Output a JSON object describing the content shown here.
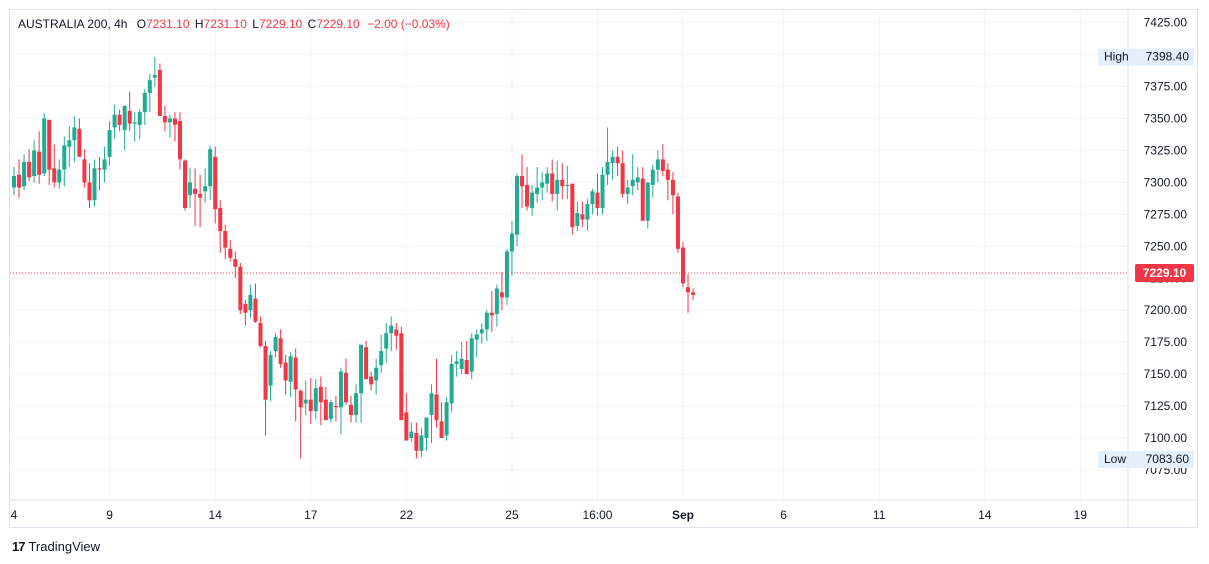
{
  "legend": {
    "symbol": "AUSTRALIA 200",
    "interval": "4h",
    "open_key": "O",
    "open": "7231.10",
    "high_key": "H",
    "high": "7231.10",
    "low_key": "L",
    "low": "7229.10",
    "close_key": "C",
    "close": "7229.10",
    "change": "−2.00 (−0.03%)"
  },
  "colors": {
    "up": "#22ab94",
    "down": "#f23645",
    "grid": "#f0f3fa",
    "badge": "#e3effd"
  },
  "brand": {
    "name": "TradingView"
  },
  "chart_data": {
    "type": "candlestick",
    "title": "AUSTRALIA 200, 4h",
    "y_ticks": [
      7075,
      7100,
      7125,
      7150,
      7175,
      7200,
      7225,
      7250,
      7275,
      7300,
      7325,
      7350,
      7375,
      7400,
      7425
    ],
    "y_tick_labels": [
      "7075.00",
      "7100.00",
      "7125.00",
      "7150.00",
      "7175.00",
      "7200.00",
      "7225.00",
      "7250.00",
      "7275.00",
      "7300.00",
      "7325.00",
      "7350.00",
      "7375.00",
      "7400.00",
      "7425.00"
    ],
    "x_ticks": [
      {
        "label": "4",
        "bar": 0,
        "bold": false
      },
      {
        "label": "9",
        "bar": 19,
        "bold": false
      },
      {
        "label": "14",
        "bar": 40,
        "bold": false
      },
      {
        "label": "17",
        "bar": 59,
        "bold": false
      },
      {
        "label": "22",
        "bar": 78,
        "bold": false
      },
      {
        "label": "25",
        "bar": 99,
        "bold": false
      },
      {
        "label": "16:00",
        "bar": 116,
        "bold": false
      },
      {
        "label": "Sep",
        "bar": 133,
        "bold": true
      },
      {
        "label": "6",
        "bar": 153,
        "bold": false
      },
      {
        "label": "11",
        "bar": 172,
        "bold": false
      },
      {
        "label": "14",
        "bar": 193,
        "bold": false
      },
      {
        "label": "19",
        "bar": 212,
        "bold": false
      }
    ],
    "markers": {
      "high_label": "High",
      "high": "7398.40",
      "low_label": "Low",
      "low": "7083.60",
      "last": "7229.10",
      "last_value": 7229.1
    },
    "ylim": [
      7070,
      7428
    ],
    "series": [
      {
        "name": "AUSTRALIA 200",
        "dir_hint": "ohlc",
        "points": [
          [
            7296,
            7312,
            7290,
            7305
          ],
          [
            7306,
            7318,
            7288,
            7296
          ],
          [
            7297,
            7322,
            7294,
            7316
          ],
          [
            7316,
            7326,
            7301,
            7304
          ],
          [
            7305,
            7333,
            7300,
            7325
          ],
          [
            7324,
            7340,
            7299,
            7306
          ],
          [
            7307,
            7354,
            7305,
            7350
          ],
          [
            7349,
            7346,
            7298,
            7310
          ],
          [
            7311,
            7330,
            7296,
            7300
          ],
          [
            7300,
            7318,
            7295,
            7310
          ],
          [
            7310,
            7336,
            7297,
            7329
          ],
          [
            7328,
            7344,
            7312,
            7333
          ],
          [
            7333,
            7352,
            7316,
            7343
          ],
          [
            7342,
            7350,
            7320,
            7320
          ],
          [
            7318,
            7326,
            7296,
            7300
          ],
          [
            7300,
            7315,
            7280,
            7286
          ],
          [
            7286,
            7318,
            7281,
            7311
          ],
          [
            7311,
            7320,
            7294,
            7310
          ],
          [
            7310,
            7328,
            7300,
            7318
          ],
          [
            7320,
            7348,
            7313,
            7341
          ],
          [
            7343,
            7361,
            7334,
            7353
          ],
          [
            7353,
            7357,
            7340,
            7345
          ],
          [
            7341,
            7360,
            7325,
            7360
          ],
          [
            7356,
            7371,
            7340,
            7346
          ],
          [
            7346,
            7355,
            7332,
            7347
          ],
          [
            7345,
            7357,
            7334,
            7355
          ],
          [
            7355,
            7373,
            7345,
            7370
          ],
          [
            7370,
            7385,
            7355,
            7380
          ],
          [
            7382,
            7398,
            7375,
            7384
          ],
          [
            7388,
            7393,
            7352,
            7352
          ],
          [
            7352,
            7360,
            7340,
            7347
          ],
          [
            7347,
            7353,
            7335,
            7350
          ],
          [
            7350,
            7355,
            7332,
            7345
          ],
          [
            7348,
            7355,
            7310,
            7318
          ],
          [
            7317,
            7318,
            7278,
            7280
          ],
          [
            7290,
            7311,
            7280,
            7300
          ],
          [
            7295,
            7311,
            7266,
            7291
          ],
          [
            7291,
            7306,
            7265,
            7288
          ],
          [
            7293,
            7311,
            7284,
            7297
          ],
          [
            7297,
            7329,
            7286,
            7326
          ],
          [
            7320,
            7328,
            7268,
            7279
          ],
          [
            7280,
            7286,
            7245,
            7262
          ],
          [
            7262,
            7267,
            7240,
            7249
          ],
          [
            7248,
            7255,
            7238,
            7241
          ],
          [
            7240,
            7246,
            7225,
            7234
          ],
          [
            7234,
            7237,
            7197,
            7200
          ],
          [
            7205,
            7208,
            7188,
            7198
          ],
          [
            7200,
            7220,
            7194,
            7212
          ],
          [
            7209,
            7221,
            7190,
            7191
          ],
          [
            7190,
            7195,
            7171,
            7172
          ],
          [
            7172,
            7176,
            7102,
            7130
          ],
          [
            7141,
            7168,
            7129,
            7165
          ],
          [
            7168,
            7182,
            7163,
            7179
          ],
          [
            7178,
            7185,
            7155,
            7158
          ],
          [
            7159,
            7165,
            7134,
            7145
          ],
          [
            7144,
            7167,
            7132,
            7164
          ],
          [
            7163,
            7170,
            7113,
            7138
          ],
          [
            7137,
            7138,
            7084,
            7124
          ],
          [
            7127,
            7145,
            7118,
            7130
          ],
          [
            7130,
            7147,
            7111,
            7121
          ],
          [
            7121,
            7146,
            7115,
            7139
          ],
          [
            7140,
            7148,
            7110,
            7128
          ],
          [
            7130,
            7140,
            7114,
            7114
          ],
          [
            7115,
            7130,
            7112,
            7128
          ],
          [
            7125,
            7133,
            7113,
            7124
          ],
          [
            7124,
            7155,
            7103,
            7152
          ],
          [
            7151,
            7162,
            7126,
            7128
          ],
          [
            7126,
            7133,
            7112,
            7118
          ],
          [
            7118,
            7142,
            7112,
            7135
          ],
          [
            7135,
            7170,
            7112,
            7173
          ],
          [
            7171,
            7176,
            7150,
            7146
          ],
          [
            7148,
            7152,
            7137,
            7142
          ],
          [
            7145,
            7162,
            7134,
            7155
          ],
          [
            7157,
            7181,
            7151,
            7168
          ],
          [
            7170,
            7190,
            7159,
            7182
          ],
          [
            7182,
            7195,
            7168,
            7188
          ],
          [
            7185,
            7190,
            7169,
            7180
          ],
          [
            7182,
            7187,
            7120,
            7114
          ],
          [
            7120,
            7135,
            7100,
            7098
          ],
          [
            7100,
            7112,
            7097,
            7105
          ],
          [
            7104,
            7112,
            7084,
            7090
          ],
          [
            7090,
            7108,
            7085,
            7102
          ],
          [
            7100,
            7116,
            7090,
            7116
          ],
          [
            7118,
            7142,
            7096,
            7135
          ],
          [
            7134,
            7162,
            7108,
            7114
          ],
          [
            7113,
            7128,
            7100,
            7100
          ],
          [
            7102,
            7132,
            7098,
            7128
          ],
          [
            7127,
            7165,
            7120,
            7158
          ],
          [
            7158,
            7168,
            7148,
            7160
          ],
          [
            7154,
            7175,
            7150,
            7162
          ],
          [
            7161,
            7176,
            7150,
            7150
          ],
          [
            7152,
            7182,
            7146,
            7178
          ],
          [
            7177,
            7185,
            7163,
            7181
          ],
          [
            7182,
            7190,
            7174,
            7185
          ],
          [
            7185,
            7200,
            7176,
            7198
          ],
          [
            7198,
            7215,
            7183,
            7196
          ],
          [
            7197,
            7220,
            7187,
            7217
          ],
          [
            7214,
            7230,
            7200,
            7210
          ],
          [
            7210,
            7248,
            7204,
            7246
          ],
          [
            7246,
            7270,
            7227,
            7260
          ],
          [
            7259,
            7307,
            7250,
            7305
          ],
          [
            7305,
            7322,
            7280,
            7297
          ],
          [
            7298,
            7312,
            7278,
            7281
          ],
          [
            7280,
            7298,
            7274,
            7292
          ],
          [
            7291,
            7312,
            7284,
            7296
          ],
          [
            7296,
            7308,
            7286,
            7300
          ],
          [
            7299,
            7312,
            7292,
            7307
          ],
          [
            7307,
            7318,
            7285,
            7291
          ],
          [
            7291,
            7317,
            7278,
            7302
          ],
          [
            7302,
            7315,
            7287,
            7297
          ],
          [
            7298,
            7313,
            7287,
            7298
          ],
          [
            7299,
            7298,
            7259,
            7265
          ],
          [
            7266,
            7285,
            7262,
            7276
          ],
          [
            7275,
            7285,
            7265,
            7271
          ],
          [
            7271,
            7287,
            7262,
            7283
          ],
          [
            7283,
            7295,
            7275,
            7293
          ],
          [
            7292,
            7307,
            7274,
            7280
          ],
          [
            7280,
            7312,
            7275,
            7306
          ],
          [
            7306,
            7343,
            7298,
            7316
          ],
          [
            7315,
            7325,
            7302,
            7320
          ],
          [
            7320,
            7328,
            7305,
            7315
          ],
          [
            7315,
            7325,
            7288,
            7291
          ],
          [
            7291,
            7302,
            7283,
            7296
          ],
          [
            7297,
            7322,
            7290,
            7302
          ],
          [
            7300,
            7312,
            7294,
            7304
          ],
          [
            7303,
            7312,
            7270,
            7270
          ],
          [
            7270,
            7290,
            7264,
            7300
          ],
          [
            7298,
            7314,
            7288,
            7310
          ],
          [
            7310,
            7325,
            7300,
            7318
          ],
          [
            7318,
            7330,
            7305,
            7309
          ],
          [
            7310,
            7315,
            7286,
            7302
          ],
          [
            7302,
            7308,
            7275,
            7290
          ],
          [
            7289,
            7292,
            7245,
            7248
          ],
          [
            7249,
            7253,
            7218,
            7221
          ],
          [
            7218,
            7228,
            7198,
            7214
          ],
          [
            7214,
            7217,
            7208,
            7212
          ]
        ]
      }
    ]
  }
}
